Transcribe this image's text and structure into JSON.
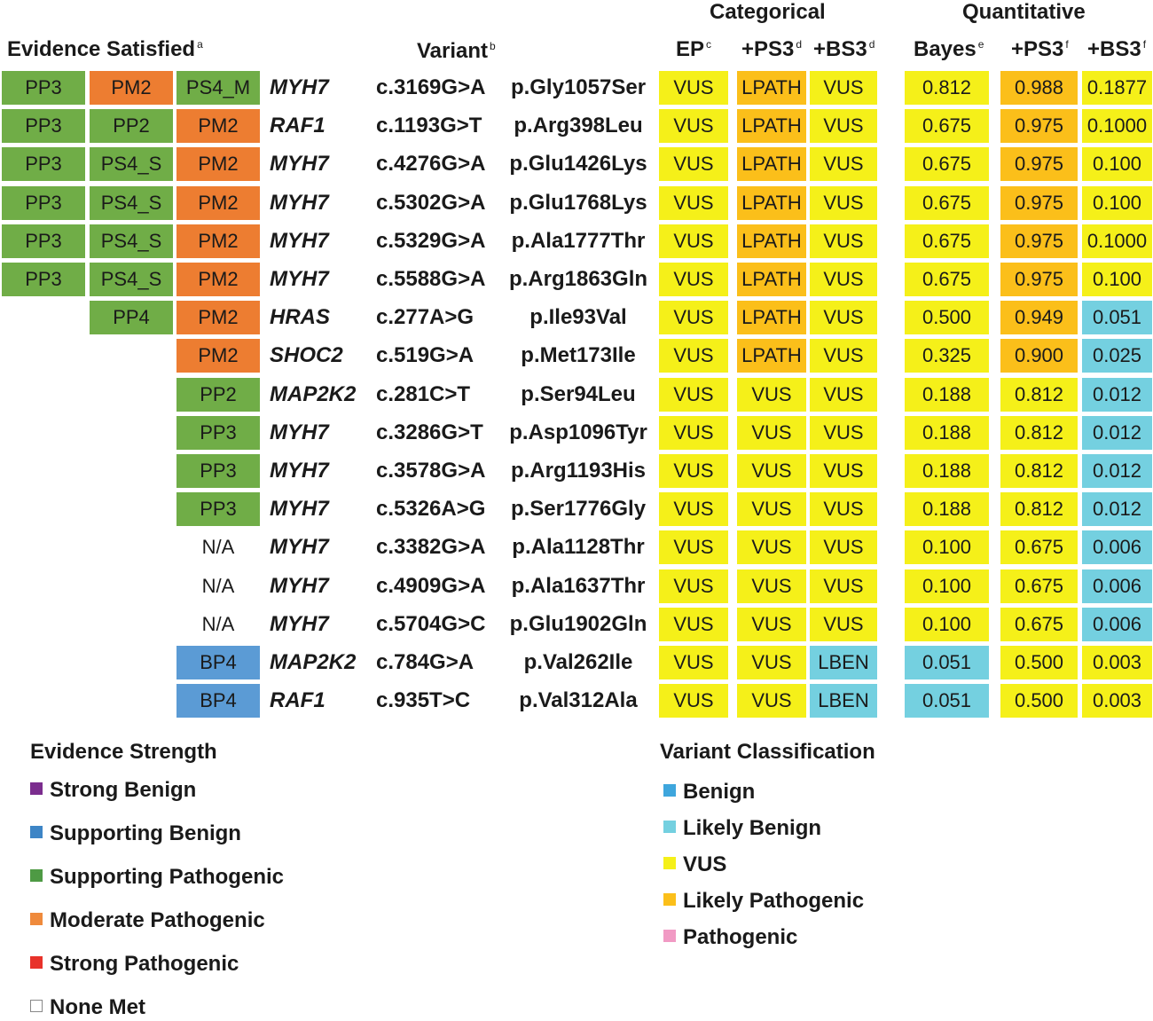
{
  "headers": {
    "categorical": "Categorical",
    "quantitative": "Quantitative",
    "evidence": "Evidence Satisfied",
    "evidence_sup": "a",
    "variant": "Variant",
    "variant_sup": "b",
    "ep": "EP",
    "ep_sup": "c",
    "ps3_cat": "+PS3",
    "ps3_cat_sup": "d",
    "bs3_cat": "+BS3",
    "bs3_cat_sup": "d",
    "bayes": "Bayes",
    "bayes_sup": "e",
    "ps3_q": "+PS3",
    "ps3_q_sup": "f",
    "bs3_q": "+BS3",
    "bs3_q_sup": "f"
  },
  "colors": {
    "PP": "#70ad47",
    "PS": "#70ad47",
    "PM": "#ed7d31",
    "BP": "#5b9bd5",
    "VUS": "#f5f019",
    "LPATH": "#fbbf1a",
    "LBEN": "#74d0e0",
    "strong_benign": "#7b2d8e",
    "supporting_benign": "#3d85c6",
    "supporting_pathogenic": "#4e9a44",
    "moderate_pathogenic": "#ef8a3c",
    "strong_pathogenic": "#e8322a",
    "benign": "#3ea6dd",
    "likely_benign": "#74d0e0",
    "vus": "#f5f019",
    "likely_pathogenic": "#fbbf1a",
    "pathogenic": "#f19ac4"
  },
  "rows": [
    {
      "e1": "PP3",
      "e2": "PM2",
      "e3": "PS4_M",
      "gene": "MYH7",
      "cdna": "c.3169G>A",
      "protein": "p.Gly1057Ser",
      "ep": "VUS",
      "ps3": "LPATH",
      "bs3": "VUS",
      "bayes": "0.812",
      "qps3": "0.988",
      "qbs3": "0.1877",
      "c_bayes": "VUS",
      "c_qps3": "LPATH",
      "c_qbs3": "VUS"
    },
    {
      "e1": "PP3",
      "e2": "PP2",
      "e3": "PM2",
      "gene": "RAF1",
      "cdna": "c.1193G>T",
      "protein": "p.Arg398Leu",
      "ep": "VUS",
      "ps3": "LPATH",
      "bs3": "VUS",
      "bayes": "0.675",
      "qps3": "0.975",
      "qbs3": "0.1000",
      "c_bayes": "VUS",
      "c_qps3": "LPATH",
      "c_qbs3": "VUS"
    },
    {
      "e1": "PP3",
      "e2": "PS4_S",
      "e3": "PM2",
      "gene": "MYH7",
      "cdna": "c.4276G>A",
      "protein": "p.Glu1426Lys",
      "ep": "VUS",
      "ps3": "LPATH",
      "bs3": "VUS",
      "bayes": "0.675",
      "qps3": "0.975",
      "qbs3": "0.100",
      "c_bayes": "VUS",
      "c_qps3": "LPATH",
      "c_qbs3": "VUS"
    },
    {
      "e1": "PP3",
      "e2": "PS4_S",
      "e3": "PM2",
      "gene": "MYH7",
      "cdna": "c.5302G>A",
      "protein": "p.Glu1768Lys",
      "ep": "VUS",
      "ps3": "LPATH",
      "bs3": "VUS",
      "bayes": "0.675",
      "qps3": "0.975",
      "qbs3": "0.100",
      "c_bayes": "VUS",
      "c_qps3": "LPATH",
      "c_qbs3": "VUS"
    },
    {
      "e1": "PP3",
      "e2": "PS4_S",
      "e3": "PM2",
      "gene": "MYH7",
      "cdna": "c.5329G>A",
      "protein": "p.Ala1777Thr",
      "ep": "VUS",
      "ps3": "LPATH",
      "bs3": "VUS",
      "bayes": "0.675",
      "qps3": "0.975",
      "qbs3": "0.1000",
      "c_bayes": "VUS",
      "c_qps3": "LPATH",
      "c_qbs3": "VUS"
    },
    {
      "e1": "PP3",
      "e2": "PS4_S",
      "e3": "PM2",
      "gene": "MYH7",
      "cdna": "c.5588G>A",
      "protein": "p.Arg1863Gln",
      "ep": "VUS",
      "ps3": "LPATH",
      "bs3": "VUS",
      "bayes": "0.675",
      "qps3": "0.975",
      "qbs3": "0.100",
      "c_bayes": "VUS",
      "c_qps3": "LPATH",
      "c_qbs3": "VUS"
    },
    {
      "e1": "",
      "e2": "PP4",
      "e3": "PM2",
      "gene": "HRAS",
      "cdna": "c.277A>G",
      "protein": "p.Ile93Val",
      "ep": "VUS",
      "ps3": "LPATH",
      "bs3": "VUS",
      "bayes": "0.500",
      "qps3": "0.949",
      "qbs3": "0.051",
      "c_bayes": "VUS",
      "c_qps3": "LPATH",
      "c_qbs3": "LBEN"
    },
    {
      "e1": "",
      "e2": "",
      "e3": "PM2",
      "gene": "SHOC2",
      "cdna": "c.519G>A",
      "protein": "p.Met173Ile",
      "ep": "VUS",
      "ps3": "LPATH",
      "bs3": "VUS",
      "bayes": "0.325",
      "qps3": "0.900",
      "qbs3": "0.025",
      "c_bayes": "VUS",
      "c_qps3": "LPATH",
      "c_qbs3": "LBEN"
    },
    {
      "e1": "",
      "e2": "",
      "e3": "PP2",
      "gene": "MAP2K2",
      "cdna": "c.281C>T",
      "protein": "p.Ser94Leu",
      "ep": "VUS",
      "ps3": "VUS",
      "bs3": "VUS",
      "bayes": "0.188",
      "qps3": "0.812",
      "qbs3": "0.012",
      "c_bayes": "VUS",
      "c_qps3": "VUS",
      "c_qbs3": "LBEN"
    },
    {
      "e1": "",
      "e2": "",
      "e3": "PP3",
      "gene": "MYH7",
      "cdna": "c.3286G>T",
      "protein": "p.Asp1096Tyr",
      "ep": "VUS",
      "ps3": "VUS",
      "bs3": "VUS",
      "bayes": "0.188",
      "qps3": "0.812",
      "qbs3": "0.012",
      "c_bayes": "VUS",
      "c_qps3": "VUS",
      "c_qbs3": "LBEN"
    },
    {
      "e1": "",
      "e2": "",
      "e3": "PP3",
      "gene": "MYH7",
      "cdna": "c.3578G>A",
      "protein": "p.Arg1193His",
      "ep": "VUS",
      "ps3": "VUS",
      "bs3": "VUS",
      "bayes": "0.188",
      "qps3": "0.812",
      "qbs3": "0.012",
      "c_bayes": "VUS",
      "c_qps3": "VUS",
      "c_qbs3": "LBEN"
    },
    {
      "e1": "",
      "e2": "",
      "e3": "PP3",
      "gene": "MYH7",
      "cdna": "c.5326A>G",
      "protein": "p.Ser1776Gly",
      "ep": "VUS",
      "ps3": "VUS",
      "bs3": "VUS",
      "bayes": "0.188",
      "qps3": "0.812",
      "qbs3": "0.012",
      "c_bayes": "VUS",
      "c_qps3": "VUS",
      "c_qbs3": "LBEN"
    },
    {
      "e1": "",
      "e2": "",
      "e3": "N/A",
      "gene": "MYH7",
      "cdna": "c.3382G>A",
      "protein": "p.Ala1128Thr",
      "ep": "VUS",
      "ps3": "VUS",
      "bs3": "VUS",
      "bayes": "0.100",
      "qps3": "0.675",
      "qbs3": "0.006",
      "c_bayes": "VUS",
      "c_qps3": "VUS",
      "c_qbs3": "LBEN"
    },
    {
      "e1": "",
      "e2": "",
      "e3": "N/A",
      "gene": "MYH7",
      "cdna": "c.4909G>A",
      "protein": "p.Ala1637Thr",
      "ep": "VUS",
      "ps3": "VUS",
      "bs3": "VUS",
      "bayes": "0.100",
      "qps3": "0.675",
      "qbs3": "0.006",
      "c_bayes": "VUS",
      "c_qps3": "VUS",
      "c_qbs3": "LBEN"
    },
    {
      "e1": "",
      "e2": "",
      "e3": "N/A",
      "gene": "MYH7",
      "cdna": "c.5704G>C",
      "protein": "p.Glu1902Gln",
      "ep": "VUS",
      "ps3": "VUS",
      "bs3": "VUS",
      "bayes": "0.100",
      "qps3": "0.675",
      "qbs3": "0.006",
      "c_bayes": "VUS",
      "c_qps3": "VUS",
      "c_qbs3": "LBEN"
    },
    {
      "e1": "",
      "e2": "",
      "e3": "BP4",
      "gene": "MAP2K2",
      "cdna": "c.784G>A",
      "protein": "p.Val262Ile",
      "ep": "VUS",
      "ps3": "VUS",
      "bs3": "LBEN",
      "bayes": "0.051",
      "qps3": "0.500",
      "qbs3": "0.003",
      "c_bayes": "LBEN",
      "c_qps3": "VUS",
      "c_qbs3": "VUS"
    },
    {
      "e1": "",
      "e2": "",
      "e3": "BP4",
      "gene": "RAF1",
      "cdna": "c.935T>C",
      "protein": "p.Val312Ala",
      "ep": "VUS",
      "ps3": "VUS",
      "bs3": "LBEN",
      "bayes": "0.051",
      "qps3": "0.500",
      "qbs3": "0.003",
      "c_bayes": "LBEN",
      "c_qps3": "VUS",
      "c_qbs3": "VUS"
    }
  ],
  "legend_strength": {
    "title": "Evidence Strength",
    "items": [
      {
        "label": "Strong Benign",
        "color": "strong_benign"
      },
      {
        "label": "Supporting Benign",
        "color": "supporting_benign"
      },
      {
        "label": "Supporting Pathogenic",
        "color": "supporting_pathogenic"
      },
      {
        "label": "Moderate Pathogenic",
        "color": "moderate_pathogenic"
      },
      {
        "label": "Strong Pathogenic",
        "color": "strong_pathogenic"
      },
      {
        "label": "None Met",
        "color": "none"
      }
    ]
  },
  "legend_class": {
    "title": "Variant Classification",
    "items": [
      {
        "label": "Benign",
        "color": "benign"
      },
      {
        "label": "Likely Benign",
        "color": "likely_benign"
      },
      {
        "label": "VUS",
        "color": "vus"
      },
      {
        "label": "Likely Pathogenic",
        "color": "likely_pathogenic"
      },
      {
        "label": "Pathogenic",
        "color": "pathogenic"
      }
    ]
  }
}
